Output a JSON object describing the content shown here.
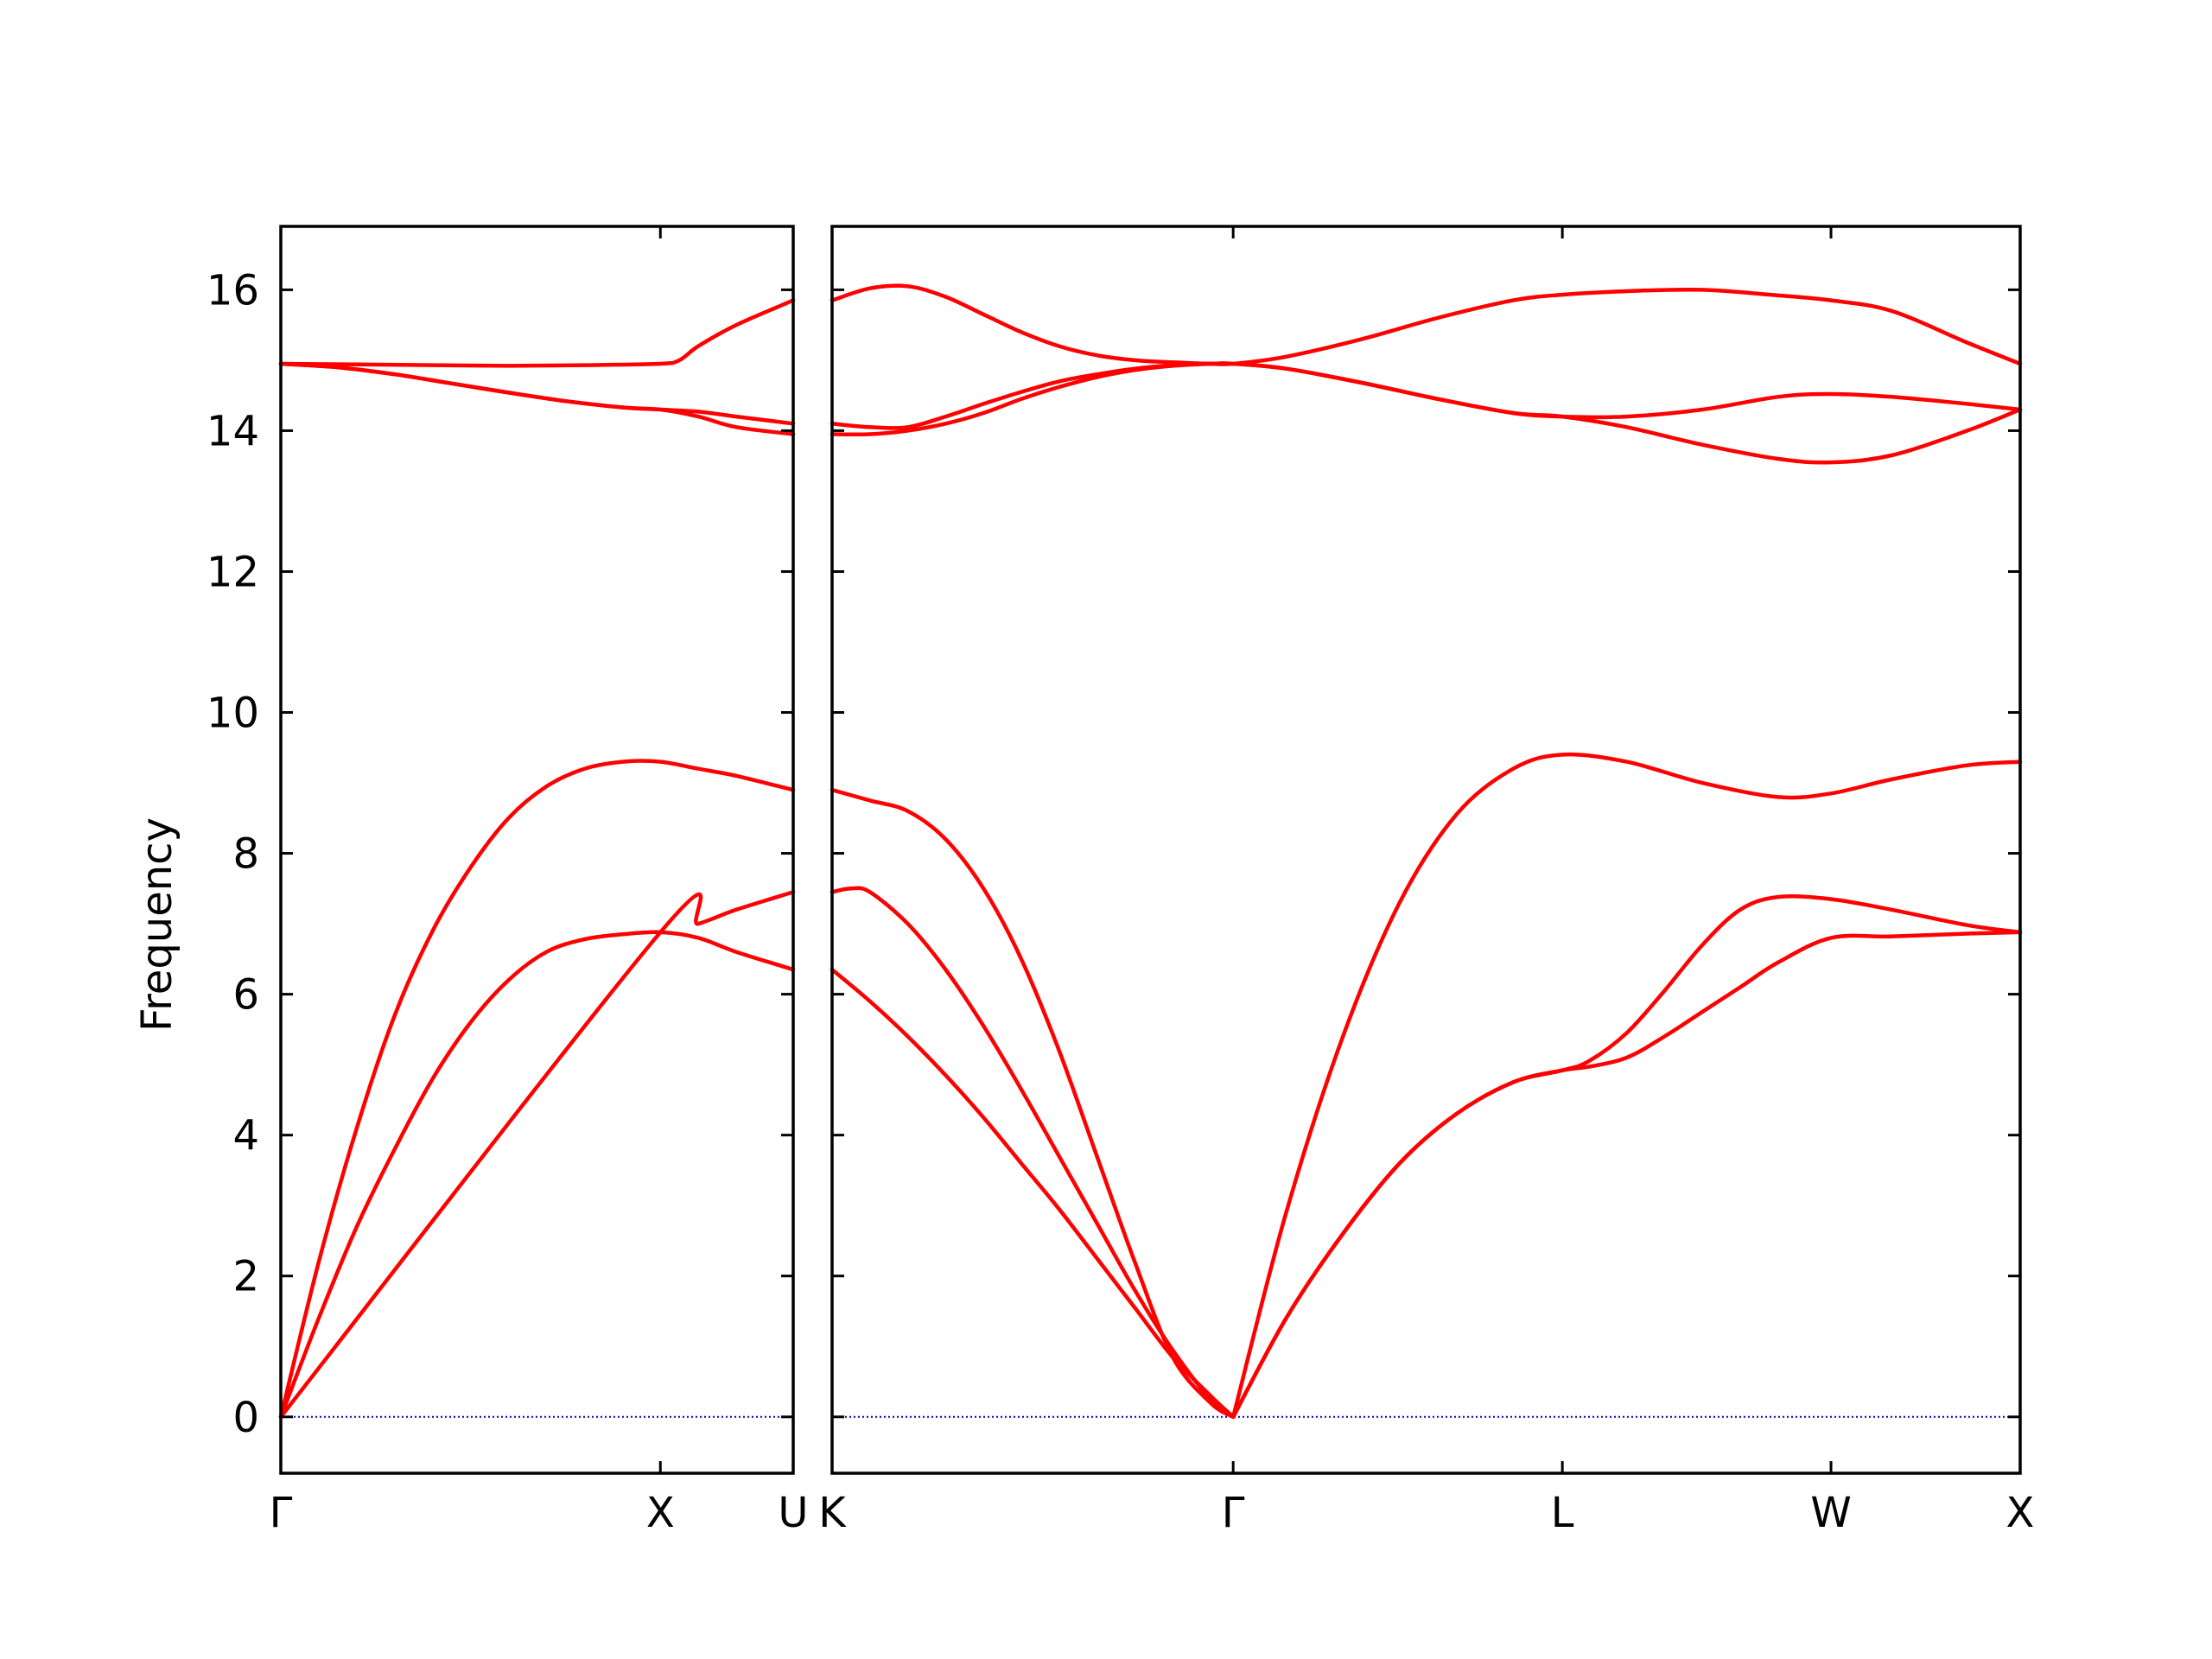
{
  "chart_data": {
    "type": "line",
    "title": "",
    "ylabel": "Frequency",
    "ylim": [
      -0.8,
      16.9
    ],
    "yticks": [
      0,
      2,
      4,
      6,
      8,
      10,
      12,
      14,
      16
    ],
    "series_color": "#ff0000",
    "zero_line_color": "#0000cc",
    "grid": false,
    "panels": [
      {
        "xlim": [
          0,
          1.35
        ],
        "ticks": [
          {
            "x": 0.0,
            "label": "Γ"
          },
          {
            "x": 1.0,
            "label": "X"
          },
          {
            "x": 1.35,
            "label": "U"
          }
        ],
        "bands": [
          {
            "x": [
              0,
              0.1,
              0.2,
              0.3,
              0.4,
              0.5,
              0.6,
              0.7,
              0.8,
              0.9,
              1.0,
              1.1,
              1.2,
              1.35
            ],
            "y": [
              0,
              1.4,
              2.7,
              3.8,
              4.8,
              5.6,
              6.2,
              6.6,
              6.78,
              6.85,
              6.88,
              6.8,
              6.6,
              6.35
            ]
          },
          {
            "x": [
              0,
              0.1,
              0.2,
              0.3,
              0.4,
              0.5,
              0.6,
              0.7,
              0.8,
              0.9,
              1.0,
              1.1,
              1.2,
              1.35
            ],
            "y": [
              0,
              2.2,
              4.1,
              5.7,
              6.9,
              7.8,
              8.5,
              8.95,
              9.2,
              9.3,
              9.3,
              9.2,
              9.1,
              8.9
            ]
          },
          {
            "x": [
              0,
              1.0,
              1.1,
              1.2,
              1.35
            ],
            "y": [
              0,
              6.88,
              7.0,
              7.2,
              7.45
            ]
          },
          {
            "x": [
              0,
              0.15,
              0.3,
              0.45,
              0.6,
              0.75,
              0.9,
              1.0,
              1.1,
              1.2,
              1.35
            ],
            "y": [
              14.95,
              14.9,
              14.8,
              14.67,
              14.54,
              14.42,
              14.33,
              14.3,
              14.2,
              14.05,
              13.95
            ]
          },
          {
            "x": [
              0,
              0.15,
              0.3,
              0.45,
              0.6,
              0.75,
              0.9,
              1.0,
              1.1,
              1.2,
              1.35
            ],
            "y": [
              14.95,
              14.9,
              14.8,
              14.67,
              14.54,
              14.42,
              14.33,
              14.3,
              14.27,
              14.2,
              14.1
            ]
          },
          {
            "x": [
              0,
              0.2,
              0.4,
              0.6,
              0.8,
              1.0,
              1.05,
              1.1,
              1.2,
              1.35
            ],
            "y": [
              14.95,
              14.94,
              14.93,
              14.92,
              14.93,
              14.95,
              15.0,
              15.2,
              15.5,
              15.85
            ]
          }
        ]
      },
      {
        "xlim": [
          0,
          3.14
        ],
        "ticks": [
          {
            "x": 0.0,
            "label": "K"
          },
          {
            "x": 1.06,
            "label": "Γ"
          },
          {
            "x": 1.93,
            "label": "L"
          },
          {
            "x": 2.64,
            "label": "W"
          },
          {
            "x": 3.14,
            "label": "X"
          }
        ],
        "bands": [
          {
            "x": [
              0,
              0.1,
              0.2,
              0.3,
              0.4,
              0.5,
              0.6,
              0.7,
              0.8,
              0.9,
              1.0,
              1.06
            ],
            "y": [
              6.35,
              5.9,
              5.4,
              4.85,
              4.25,
              3.6,
              2.95,
              2.25,
              1.55,
              0.85,
              0.3,
              0
            ]
          },
          {
            "x": [
              0,
              0.05,
              0.1,
              0.2,
              0.3,
              0.4,
              0.5,
              0.6,
              0.7,
              0.8,
              0.9,
              1.0,
              1.06
            ],
            "y": [
              7.45,
              7.5,
              7.45,
              7.0,
              6.35,
              5.55,
              4.65,
              3.7,
              2.75,
              1.8,
              0.95,
              0.25,
              0
            ]
          },
          {
            "x": [
              0,
              0.1,
              0.2,
              0.3,
              0.4,
              0.5,
              0.6,
              0.7,
              0.8,
              0.9,
              1.0,
              1.06
            ],
            "y": [
              8.9,
              8.75,
              8.6,
              8.2,
              7.5,
              6.5,
              5.2,
              3.7,
              2.2,
              0.85,
              0.2,
              0
            ]
          },
          {
            "x": [
              1.06,
              1.2,
              1.35,
              1.5,
              1.65,
              1.8,
              1.93,
              2.0,
              2.1,
              2.2,
              2.3,
              2.4,
              2.5,
              2.64,
              2.8,
              3.0,
              3.14
            ],
            "y": [
              0,
              1.4,
              2.6,
              3.6,
              4.3,
              4.75,
              4.92,
              4.97,
              5.1,
              5.4,
              5.75,
              6.1,
              6.45,
              6.8,
              6.82,
              6.86,
              6.88
            ]
          },
          {
            "x": [
              1.06,
              1.2,
              1.35,
              1.5,
              1.65,
              1.8,
              1.93,
              2.0,
              2.1,
              2.2,
              2.3,
              2.4,
              2.5,
              2.64,
              2.8,
              3.0,
              3.14
            ],
            "y": [
              0,
              1.4,
              2.6,
              3.6,
              4.3,
              4.75,
              4.92,
              5.05,
              5.45,
              6.05,
              6.7,
              7.2,
              7.38,
              7.35,
              7.2,
              6.98,
              6.88
            ]
          },
          {
            "x": [
              1.06,
              1.2,
              1.35,
              1.5,
              1.65,
              1.8,
              1.93,
              2.1,
              2.3,
              2.5,
              2.64,
              2.8,
              3.0,
              3.14
            ],
            "y": [
              0,
              2.9,
              5.4,
              7.3,
              8.55,
              9.2,
              9.4,
              9.3,
              9.0,
              8.8,
              8.85,
              9.05,
              9.25,
              9.3
            ]
          },
          {
            "x": [
              0,
              0.1,
              0.2,
              0.3,
              0.4,
              0.5,
              0.6,
              0.7,
              0.8,
              0.9,
              1.0,
              1.06,
              1.2,
              1.4,
              1.6,
              1.8,
              1.93,
              2.1,
              2.3,
              2.5,
              2.64,
              2.8,
              3.0,
              3.14
            ],
            "y": [
              13.95,
              13.95,
              14.0,
              14.1,
              14.25,
              14.45,
              14.62,
              14.76,
              14.86,
              14.92,
              14.95,
              14.95,
              14.88,
              14.68,
              14.45,
              14.25,
              14.2,
              14.05,
              13.8,
              13.6,
              13.55,
              13.65,
              14.0,
              14.3
            ]
          },
          {
            "x": [
              0,
              0.1,
              0.2,
              0.3,
              0.4,
              0.5,
              0.6,
              0.7,
              0.8,
              0.9,
              1.0,
              1.06,
              1.2,
              1.4,
              1.6,
              1.8,
              1.93,
              2.1,
              2.3,
              2.5,
              2.64,
              2.8,
              3.0,
              3.14
            ],
            "y": [
              14.1,
              14.05,
              14.05,
              14.2,
              14.38,
              14.55,
              14.7,
              14.8,
              14.88,
              14.93,
              14.95,
              14.95,
              14.88,
              14.68,
              14.45,
              14.25,
              14.2,
              14.2,
              14.3,
              14.48,
              14.52,
              14.48,
              14.38,
              14.3
            ]
          },
          {
            "x": [
              0,
              0.1,
              0.2,
              0.3,
              0.4,
              0.5,
              0.6,
              0.7,
              0.8,
              0.9,
              1.0,
              1.06,
              1.2,
              1.4,
              1.6,
              1.8,
              1.93,
              2.1,
              2.3,
              2.5,
              2.64,
              2.8,
              3.0,
              3.14
            ],
            "y": [
              15.85,
              16.02,
              16.05,
              15.9,
              15.65,
              15.4,
              15.2,
              15.07,
              15.0,
              14.97,
              14.95,
              14.95,
              15.05,
              15.3,
              15.6,
              15.85,
              15.93,
              15.98,
              16.0,
              15.92,
              15.85,
              15.7,
              15.25,
              14.95
            ]
          }
        ]
      }
    ]
  }
}
